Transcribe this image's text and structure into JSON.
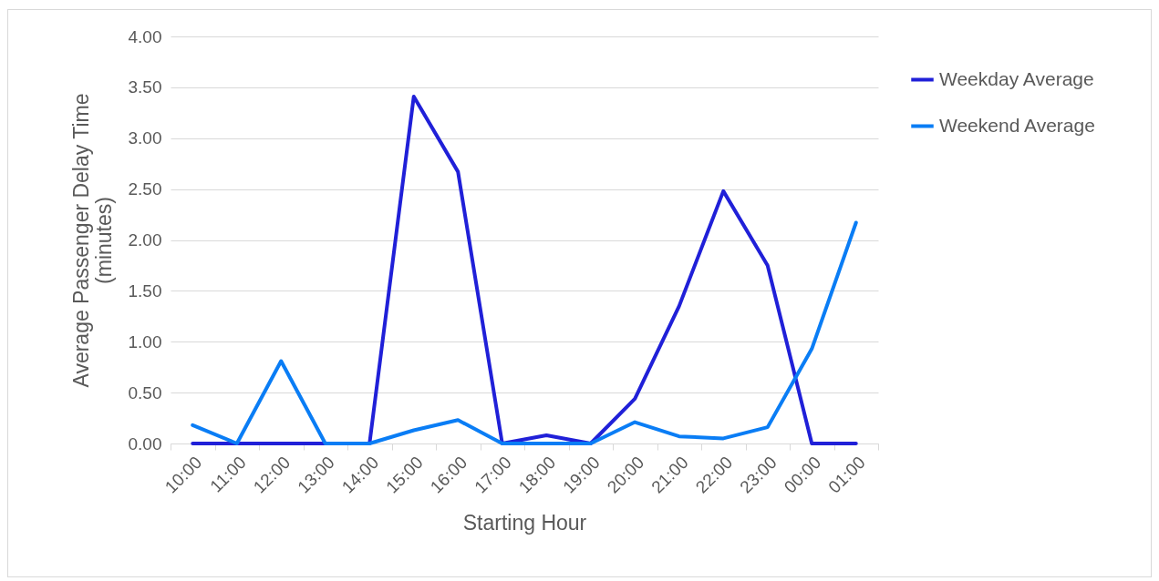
{
  "chart_data": {
    "type": "line",
    "xlabel": "Starting Hour",
    "ylabel": "Average Passenger Delay Time (minutes)",
    "categories": [
      "10:00",
      "11:00",
      "12:00",
      "13:00",
      "14:00",
      "15:00",
      "16:00",
      "17:00",
      "18:00",
      "19:00",
      "20:00",
      "21:00",
      "22:00",
      "23:00",
      "00:00",
      "01:00"
    ],
    "series": [
      {
        "name": "Weekday Average",
        "color": "#2020d8",
        "values": [
          0,
          0,
          0,
          0,
          0,
          3.41,
          2.67,
          0,
          0.08,
          0,
          0.44,
          1.35,
          2.48,
          1.75,
          0,
          0
        ]
      },
      {
        "name": "Weekend Average",
        "color": "#0a7df5",
        "values": [
          0.18,
          0,
          0.81,
          0,
          0,
          0.13,
          0.23,
          0,
          0,
          0,
          0.21,
          0.07,
          0.05,
          0.16,
          0.93,
          2.17
        ]
      }
    ],
    "ylim": [
      0,
      4
    ],
    "yticks": [
      {
        "value": 0,
        "label": "0.00"
      },
      {
        "value": 0.5,
        "label": "0.50"
      },
      {
        "value": 1,
        "label": "1.00"
      },
      {
        "value": 1.5,
        "label": "1.50"
      },
      {
        "value": 2,
        "label": "2.00"
      },
      {
        "value": 2.5,
        "label": "2.50"
      },
      {
        "value": 3,
        "label": "3.00"
      },
      {
        "value": 3.5,
        "label": "3.50"
      },
      {
        "value": 4,
        "label": "4.00"
      }
    ],
    "grid": "y",
    "legend": "top right",
    "marker": "none",
    "line_style": "solid"
  }
}
